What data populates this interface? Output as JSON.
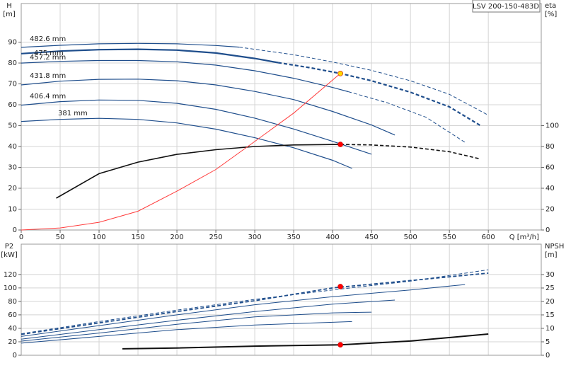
{
  "chart_data": [
    {
      "type": "line",
      "title": "LSV 200-150-483D",
      "xlabel": "Q [m³/h]",
      "ylabel": "H",
      "ylabel_unit": "[m]",
      "y2label": "eta",
      "y2label_unit": "[%]",
      "xlim": [
        0,
        668
      ],
      "xticks": [
        0,
        50,
        100,
        150,
        200,
        250,
        300,
        350,
        400,
        450,
        500,
        550,
        600
      ],
      "show_xtick_labels": true,
      "ylim": [
        0,
        108.5
      ],
      "yticks": [
        0,
        10,
        20,
        30,
        40,
        50,
        60,
        70,
        80,
        90
      ],
      "y2lim": [
        0,
        217
      ],
      "y2ticks": [
        0,
        20,
        40,
        60,
        80,
        100
      ],
      "grid": true,
      "series": [
        {
          "name": "482.6 mm",
          "color": "#1f4e8c",
          "line_style": "solid",
          "width": 1.2,
          "x": [
            0,
            50,
            100,
            150,
            200,
            250,
            280
          ],
          "values": [
            87.5,
            88.5,
            89.2,
            89.4,
            89.2,
            88.4,
            87.6
          ]
        },
        {
          "name": "475 mm",
          "color": "#1f4e8c",
          "line_style": "solid",
          "width": 2.2,
          "x": [
            0,
            50,
            100,
            150,
            200,
            250,
            300,
            330
          ],
          "values": [
            84.5,
            85.7,
            86.4,
            86.6,
            86.2,
            84.8,
            82.2,
            80.2
          ]
        },
        {
          "name": "457.2 mm",
          "color": "#1f4e8c",
          "line_style": "solid",
          "width": 1.2,
          "x": [
            0,
            50,
            100,
            150,
            200,
            250,
            300,
            350,
            400,
            420
          ],
          "values": [
            80,
            80.8,
            81.2,
            81.2,
            80.6,
            79,
            76.3,
            72.7,
            68.3,
            66.3
          ]
        },
        {
          "name": "431.8 mm",
          "color": "#1f4e8c",
          "line_style": "solid",
          "width": 1.2,
          "x": [
            0,
            50,
            100,
            150,
            200,
            250,
            300,
            350,
            400,
            450,
            480
          ],
          "values": [
            69.5,
            71.3,
            72.2,
            72.3,
            71.5,
            69.5,
            66.4,
            62.5,
            56.8,
            50.3,
            45.5
          ]
        },
        {
          "name": "406.4 mm",
          "color": "#1f4e8c",
          "line_style": "solid",
          "width": 1.2,
          "x": [
            0,
            50,
            100,
            150,
            200,
            250,
            300,
            350,
            400,
            450
          ],
          "values": [
            59.8,
            61.5,
            62.3,
            62.1,
            60.7,
            57.8,
            53.6,
            48.4,
            42.5,
            36.3
          ]
        },
        {
          "name": "381 mm",
          "color": "#1f4e8c",
          "line_style": "solid",
          "width": 1.2,
          "x": [
            0,
            50,
            100,
            150,
            200,
            250,
            300,
            350,
            400,
            425
          ],
          "values": [
            52,
            53,
            53.5,
            53,
            51.3,
            48.3,
            44.2,
            39.4,
            33.4,
            29.5
          ]
        },
        {
          "color": "#1f4e8c",
          "line_style": "dashed",
          "width": 1,
          "x": [
            280,
            350,
            400,
            450,
            500,
            550,
            600
          ],
          "values": [
            87.6,
            84,
            80.5,
            76.5,
            71.5,
            65,
            55
          ]
        },
        {
          "color": "#1f4e8c",
          "line_style": "dashed",
          "width": 2.2,
          "x": [
            330,
            370,
            410,
            450,
            500,
            550,
            590
          ],
          "values": [
            80.2,
            77.8,
            75,
            71.5,
            66,
            59,
            50
          ]
        },
        {
          "color": "#1f4e8c",
          "line_style": "dashed",
          "width": 1,
          "x": [
            420,
            470,
            520,
            570
          ],
          "values": [
            66.3,
            61,
            54,
            42
          ]
        },
        {
          "color": "#111111",
          "line_style": "solid",
          "width": 1.6,
          "axis": "y2",
          "x": [
            45,
            100,
            150,
            200,
            250,
            300,
            350,
            410
          ],
          "values": [
            30.5,
            54,
            65,
            72.5,
            77,
            80,
            81.5,
            82
          ]
        },
        {
          "color": "#111111",
          "line_style": "dashed",
          "width": 1.6,
          "axis": "y2",
          "x": [
            410,
            450,
            500,
            550,
            590
          ],
          "values": [
            82,
            81.5,
            79.5,
            75,
            68
          ]
        },
        {
          "color": "#ff3b3b",
          "line_style": "solid",
          "width": 1,
          "x": [
            0,
            50,
            100,
            150,
            200,
            250,
            300,
            350,
            410
          ],
          "values": [
            0,
            1,
            3.7,
            9,
            18.6,
            29,
            42.4,
            56,
            75
          ]
        }
      ],
      "points": [
        {
          "x": 410,
          "y": 75,
          "color": "#ffd700"
        },
        {
          "x": 410,
          "y": 82,
          "axis": "y2",
          "color": "#ff0000"
        }
      ]
    },
    {
      "type": "line",
      "ylabel": "P2",
      "ylabel_unit": "[kW]",
      "y2label": "NPSH",
      "y2label_unit": "[m]",
      "xlim": [
        0,
        668
      ],
      "xticks": [
        0,
        50,
        100,
        150,
        200,
        250,
        300,
        350,
        400,
        450,
        500,
        550,
        600
      ],
      "show_xtick_labels": false,
      "ylim": [
        0,
        165
      ],
      "yticks": [
        0,
        20,
        40,
        60,
        80,
        100,
        120
      ],
      "y2lim": [
        0,
        41.3
      ],
      "y2ticks": [
        0,
        5,
        10,
        15,
        20,
        25,
        30
      ],
      "grid": true,
      "series": [
        {
          "color": "#1f4e8c",
          "line_style": "dashed",
          "width": 1,
          "x": [
            0,
            100,
            200,
            300,
            400,
            500,
            600
          ],
          "values": [
            32,
            50,
            67,
            83,
            97,
            110,
            127
          ]
        },
        {
          "color": "#1f4e8c",
          "line_style": "dashed",
          "width": 1.8,
          "x": [
            0,
            100,
            200,
            300,
            400,
            500,
            600
          ],
          "values": [
            31,
            48,
            65,
            81,
            100,
            111,
            122
          ]
        },
        {
          "color": "#1f4e8c",
          "line_style": "solid",
          "width": 1,
          "x": [
            0,
            100,
            200,
            300,
            400,
            500,
            570
          ],
          "values": [
            28,
            44,
            60,
            75,
            87,
            97,
            105
          ]
        },
        {
          "color": "#1f4e8c",
          "line_style": "solid",
          "width": 1,
          "x": [
            0,
            100,
            200,
            300,
            400,
            480
          ],
          "values": [
            24,
            38,
            52,
            65,
            76,
            82
          ]
        },
        {
          "color": "#1f4e8c",
          "line_style": "solid",
          "width": 1,
          "x": [
            0,
            100,
            200,
            300,
            400,
            450
          ],
          "values": [
            21,
            33,
            46,
            57,
            63,
            64
          ]
        },
        {
          "color": "#1f4e8c",
          "line_style": "solid",
          "width": 1,
          "x": [
            0,
            100,
            200,
            300,
            400,
            425
          ],
          "values": [
            18,
            28,
            38,
            45,
            49,
            50
          ]
        },
        {
          "color": "#111111",
          "line_style": "solid",
          "width": 2,
          "axis": "y2",
          "x": [
            130,
            200,
            300,
            410,
            500,
            600
          ],
          "values": [
            2.4,
            2.7,
            3.4,
            3.9,
            5.3,
            7.9
          ]
        }
      ],
      "points": [
        {
          "x": 410,
          "y": 102,
          "color": "#ff0000"
        },
        {
          "x": 410,
          "y": 3.9,
          "axis": "y2",
          "color": "#ff0000"
        }
      ]
    }
  ]
}
